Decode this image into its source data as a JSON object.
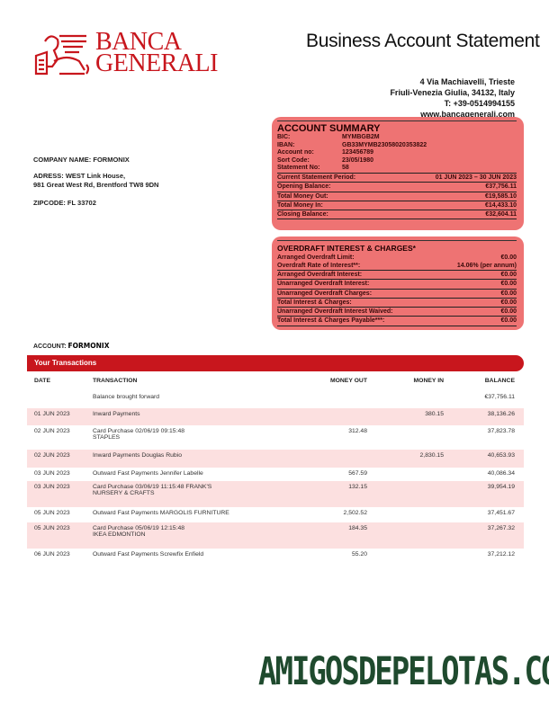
{
  "brand": {
    "name_line1": "BANCA",
    "name_line2": "GENERALI",
    "color": "#c8161d"
  },
  "title": "Business Account Statement",
  "bank_address": [
    "4 Via Machiavelli, Trieste",
    "Friuli-Venezia Giulia, 34132, Italy",
    "T: +39-0514994155",
    "www.bancagenerali.com"
  ],
  "company": {
    "name": "COMPANY NAME: FORMONIX",
    "address1": "ADRESS: WEST Link House,",
    "address2": "981 Great West Rd, Brentford TW8 9DN",
    "zip": "ZIPCODE: FL 33702"
  },
  "summary": {
    "title": "ACCOUNT SUMMARY",
    "details": [
      {
        "k": "BIC:",
        "v": "MYMBGB2M"
      },
      {
        "k": "IBAN:",
        "v": "GB33MYMB23058020353822"
      },
      {
        "k": "Account no:",
        "v": "123456789"
      },
      {
        "k": "Sort Code:",
        "v": "23/05/1980"
      },
      {
        "k": "Statement No:",
        "v": "58"
      }
    ],
    "lines": [
      {
        "k": "Current Statement Period:",
        "v": "01 JUN 2023 – 30 JUN 2023"
      },
      {
        "k": "Opening Balance:",
        "v": "€37,756.11"
      },
      {
        "k": "Total Money Out:",
        "v": "€19,585.10"
      },
      {
        "k": "Total Money In:",
        "v": "€14,433.10"
      },
      {
        "k": "Closing Balance:",
        "v": "€32,604.11"
      }
    ]
  },
  "overdraft": {
    "title": "OVERDRAFT INTEREST & CHARGES*",
    "plain": [
      {
        "k": "Arranged Overdraft Limit:",
        "v": "€0.00"
      },
      {
        "k": "Overdraft Rate of Interest**:",
        "v": "14.06% (per annum)"
      }
    ],
    "lines": [
      {
        "k": "Arranged Overdraft Interest:",
        "v": "€0.00"
      },
      {
        "k": "Unarranged Overdraft Interest:",
        "v": "€0.00"
      },
      {
        "k": "Unarranged Overdraft Charges:",
        "v": "€0.00"
      },
      {
        "k": "Total Interest & Charges:",
        "v": "€0.00"
      },
      {
        "k": "Unarranged Overdraft Interest Waived:",
        "v": "€0.00"
      },
      {
        "k": "Total Interest & Charges Payable***:",
        "v": "€0.00"
      }
    ]
  },
  "account": {
    "label": "ACCOUNT:",
    "name": "FORMONIX"
  },
  "transactions": {
    "title": "Your Transactions",
    "headers": {
      "date": "DATE",
      "transaction": "TRANSACTION",
      "out": "MONEY OUT",
      "in": "MONEY IN",
      "balance": "BALANCE"
    },
    "rows": [
      {
        "date": "",
        "desc": "Balance brought forward",
        "desc2": "",
        "out": "",
        "in": "",
        "balance": "€37,756.11"
      },
      {
        "date": "01 JUN 2023",
        "desc": "Inward Payments",
        "desc2": "",
        "out": "",
        "in": "380.15",
        "balance": "38,136.26"
      },
      {
        "date": "02 JUN 2023",
        "desc": "Card Purchase 02/06/19 09:15:48",
        "desc2": "STAPLES",
        "out": "312.48",
        "in": "",
        "balance": "37,823.78"
      },
      {
        "date": "02 JUN 2023",
        "desc": "Inward Payments Douglas Rubio",
        "desc2": "",
        "out": "",
        "in": "2,830.15",
        "balance": "40,653.93"
      },
      {
        "date": "03 JUN 2023",
        "desc": "Outward Fast Payments Jennifer Labelle",
        "desc2": "",
        "out": "567.59",
        "in": "",
        "balance": "40,086.34"
      },
      {
        "date": "03 JUN 2023",
        "desc": "Card Purchase 03/06/19 11:15:48 FRANK'S",
        "desc2": "NURSERY & CRAFTS",
        "out": "132.15",
        "in": "",
        "balance": "39,954.19"
      },
      {
        "date": "05 JUN 2023",
        "desc": "Outward Fast Payments MARGOLIS FURNITURE",
        "desc2": "",
        "out": "2,502.52",
        "in": "",
        "balance": "37,451.67"
      },
      {
        "date": "05 JUN 2023",
        "desc": "Card Purchase 05/06/19 12:15:48",
        "desc2": "IKEA EDMONTION",
        "out": "184.35",
        "in": "",
        "balance": "37,267.32"
      },
      {
        "date": "06 JUN 2023",
        "desc": "Outward Fast Payments Screwfix Enfield",
        "desc2": "",
        "out": "55.20",
        "in": "",
        "balance": "37,212.12"
      }
    ]
  },
  "watermark": "AMIGOSDEPELOTAS.COM"
}
